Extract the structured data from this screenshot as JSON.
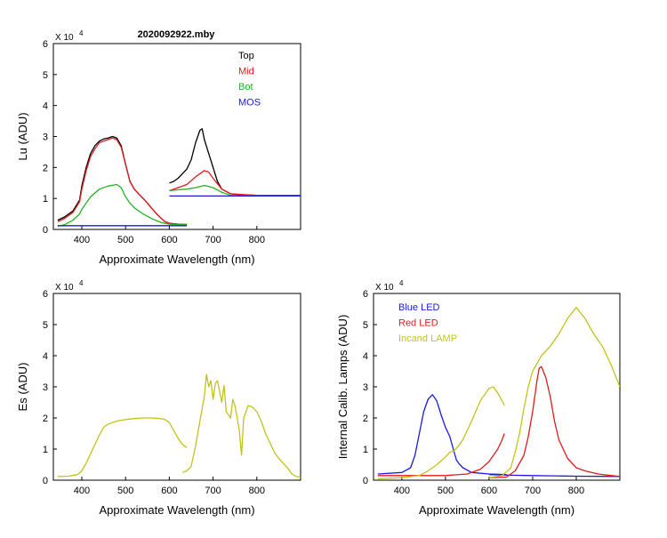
{
  "figure_title": "2020092922.mby",
  "chart_data": [
    {
      "id": "lu",
      "type": "line",
      "title": "2020092922.mby",
      "xlabel": "Approximate Wavelength (nm)",
      "ylabel": "Lu (ADU)",
      "xlim": [
        335,
        900
      ],
      "ylim": [
        0,
        6
      ],
      "xticks": [
        400,
        500,
        600,
        700,
        800
      ],
      "yticks": [
        0,
        1,
        2,
        3,
        4,
        5,
        6
      ],
      "ytick_labels": [
        "0",
        "1",
        "2",
        "3",
        "4",
        "5",
        "6"
      ],
      "multiplier_label": "X 10",
      "multiplier_exp": "4",
      "legend": [
        "Top",
        "Mid",
        "Bot",
        "MOS"
      ],
      "series": [
        {
          "name": "Top",
          "color": "#000000",
          "segments": [
            {
              "x": [
                345,
                360,
                380,
                395,
                400,
                410,
                420,
                430,
                440,
                450,
                460,
                470,
                480,
                490,
                500,
                510,
                520,
                530,
                540,
                550,
                560,
                570,
                580,
                590,
                600,
                610,
                620,
                630,
                640
              ],
              "y": [
                0.3,
                0.4,
                0.6,
                0.95,
                1.4,
                2.0,
                2.45,
                2.7,
                2.85,
                2.92,
                2.95,
                3.0,
                2.95,
                2.7,
                2.1,
                1.55,
                1.3,
                1.15,
                1.0,
                0.85,
                0.68,
                0.52,
                0.38,
                0.25,
                0.2,
                0.18,
                0.17,
                0.16,
                0.16
              ]
            },
            {
              "x": [
                600,
                610,
                620,
                630,
                640,
                650,
                660,
                670,
                675,
                680,
                690,
                700,
                710,
                720,
                740,
                760,
                800,
                850,
                900
              ],
              "y": [
                1.5,
                1.55,
                1.65,
                1.8,
                1.95,
                2.25,
                2.8,
                3.2,
                3.25,
                2.9,
                2.45,
                2.0,
                1.55,
                1.3,
                1.15,
                1.12,
                1.1,
                1.1,
                1.1
              ]
            }
          ]
        },
        {
          "name": "Mid",
          "color": "#e41a1c",
          "segments": [
            {
              "x": [
                345,
                360,
                380,
                395,
                400,
                410,
                420,
                430,
                440,
                450,
                460,
                470,
                480,
                490,
                500,
                510,
                520,
                530,
                540,
                550,
                560,
                570,
                580,
                590,
                600,
                610,
                620,
                630,
                640
              ],
              "y": [
                0.25,
                0.35,
                0.55,
                0.9,
                1.3,
                1.9,
                2.35,
                2.6,
                2.8,
                2.85,
                2.9,
                2.95,
                2.9,
                2.65,
                2.1,
                1.55,
                1.3,
                1.15,
                1.0,
                0.85,
                0.68,
                0.52,
                0.38,
                0.25,
                0.2,
                0.18,
                0.17,
                0.16,
                0.16
              ]
            },
            {
              "x": [
                600,
                620,
                640,
                660,
                680,
                690,
                700,
                720,
                740,
                800,
                900
              ],
              "y": [
                1.25,
                1.35,
                1.45,
                1.7,
                1.9,
                1.85,
                1.65,
                1.3,
                1.15,
                1.1,
                1.1
              ]
            }
          ]
        },
        {
          "name": "Bot",
          "color": "#22b322",
          "segments": [
            {
              "x": [
                345,
                360,
                380,
                395,
                400,
                420,
                440,
                460,
                480,
                490,
                500,
                510,
                520,
                540,
                560,
                580,
                600,
                620,
                640
              ],
              "y": [
                0.1,
                0.15,
                0.3,
                0.5,
                0.65,
                1.05,
                1.3,
                1.4,
                1.45,
                1.35,
                1.05,
                0.85,
                0.7,
                0.5,
                0.35,
                0.23,
                0.17,
                0.15,
                0.15
              ]
            },
            {
              "x": [
                600,
                620,
                640,
                660,
                680,
                700,
                720,
                740,
                800,
                900
              ],
              "y": [
                1.25,
                1.28,
                1.3,
                1.35,
                1.42,
                1.35,
                1.2,
                1.1,
                1.08,
                1.08
              ]
            }
          ]
        },
        {
          "name": "MOS",
          "color": "#1a1ae6",
          "segments": [
            {
              "x": [
                345,
                640
              ],
              "y": [
                0.12,
                0.12
              ]
            },
            {
              "x": [
                600,
                900
              ],
              "y": [
                1.08,
                1.08
              ]
            }
          ]
        }
      ]
    },
    {
      "id": "es",
      "type": "line",
      "title": "",
      "xlabel": "Approximate Wavelength (nm)",
      "ylabel": "Es  (ADU)",
      "xlim": [
        335,
        900
      ],
      "ylim": [
        0,
        6
      ],
      "xticks": [
        400,
        500,
        600,
        700,
        800
      ],
      "yticks": [
        0,
        1,
        2,
        3,
        4,
        5,
        6
      ],
      "ytick_labels": [
        "0",
        "1",
        "2",
        "3",
        "4",
        "5",
        "6"
      ],
      "multiplier_label": "X 10",
      "multiplier_exp": "4",
      "legend": [],
      "series": [
        {
          "name": "Es",
          "color": "#c4c418",
          "segments": [
            {
              "x": [
                345,
                370,
                390,
                400,
                410,
                420,
                430,
                440,
                450,
                460,
                480,
                500,
                520,
                540,
                560,
                580,
                590,
                600,
                610,
                620,
                630,
                640
              ],
              "y": [
                0.12,
                0.13,
                0.18,
                0.3,
                0.55,
                0.85,
                1.15,
                1.45,
                1.7,
                1.8,
                1.9,
                1.95,
                1.98,
                2.0,
                2.0,
                1.98,
                1.95,
                1.85,
                1.6,
                1.35,
                1.15,
                1.05
              ]
            },
            {
              "x": [
                630,
                640,
                650,
                660,
                670,
                680,
                685,
                690,
                695,
                700,
                705,
                710,
                720,
                725,
                730,
                740,
                745,
                750,
                755,
                760,
                765,
                770,
                780,
                790,
                800,
                810,
                820,
                830,
                840,
                850,
                860,
                870,
                880,
                890,
                900
              ],
              "y": [
                0.25,
                0.3,
                0.45,
                1.1,
                1.9,
                2.7,
                3.4,
                3.0,
                3.2,
                2.6,
                3.1,
                3.2,
                2.5,
                3.05,
                2.2,
                2.0,
                2.6,
                2.4,
                2.0,
                1.6,
                0.8,
                2.0,
                2.4,
                2.35,
                2.2,
                1.9,
                1.5,
                1.2,
                0.9,
                0.7,
                0.55,
                0.4,
                0.2,
                0.12,
                0.1
              ]
            }
          ]
        }
      ]
    },
    {
      "id": "lamps",
      "type": "line",
      "title": "",
      "xlabel": "Approximate Wavelength (nm)",
      "ylabel": "Internal Calib. Lamps (ADU)",
      "xlim": [
        335,
        900
      ],
      "ylim": [
        0,
        6
      ],
      "xticks": [
        400,
        500,
        600,
        700,
        800
      ],
      "yticks": [
        0,
        1,
        2,
        3,
        4,
        5,
        6
      ],
      "ytick_labels": [
        "0",
        "1",
        "2",
        "3",
        "4",
        "5",
        "6"
      ],
      "multiplier_label": "X 10",
      "multiplier_exp": "4",
      "legend": [
        "Blue LED",
        "Red LED",
        "Incand LAMP"
      ],
      "series": [
        {
          "name": "Blue LED",
          "color": "#1a1ae6",
          "segments": [
            {
              "x": [
                345,
                400,
                420,
                430,
                440,
                450,
                460,
                470,
                480,
                490,
                500,
                510,
                520,
                525,
                530,
                540,
                560,
                600,
                640
              ],
              "y": [
                0.2,
                0.25,
                0.4,
                0.8,
                1.5,
                2.2,
                2.6,
                2.75,
                2.55,
                2.1,
                1.7,
                1.4,
                0.9,
                0.65,
                0.55,
                0.4,
                0.25,
                0.2,
                0.18
              ]
            },
            {
              "x": [
                600,
                650,
                700,
                750,
                800,
                900
              ],
              "y": [
                0.18,
                0.16,
                0.15,
                0.14,
                0.13,
                0.12
              ]
            }
          ]
        },
        {
          "name": "Red LED",
          "color": "#e41a1c",
          "segments": [
            {
              "x": [
                345,
                500,
                550,
                580,
                600,
                620,
                630,
                635
              ],
              "y": [
                0.15,
                0.15,
                0.2,
                0.35,
                0.6,
                1.0,
                1.3,
                1.5
              ]
            },
            {
              "x": [
                600,
                640,
                660,
                680,
                690,
                700,
                710,
                715,
                720,
                730,
                740,
                750,
                760,
                780,
                800,
                820,
                850,
                880,
                900
              ],
              "y": [
                0.08,
                0.1,
                0.3,
                0.8,
                1.4,
                2.2,
                3.2,
                3.6,
                3.65,
                3.3,
                2.7,
                1.9,
                1.3,
                0.7,
                0.4,
                0.3,
                0.2,
                0.15,
                0.12
              ]
            }
          ]
        },
        {
          "name": "Incand LAMP",
          "color": "#c4c418",
          "segments": [
            {
              "x": [
                345,
                400,
                440,
                460,
                480,
                500,
                510,
                520,
                530,
                540,
                560,
                580,
                600,
                610,
                620,
                630,
                635
              ],
              "y": [
                0.05,
                0.08,
                0.15,
                0.3,
                0.5,
                0.75,
                0.9,
                0.95,
                1.1,
                1.3,
                1.9,
                2.55,
                2.95,
                3.0,
                2.8,
                2.55,
                2.4
              ]
            },
            {
              "x": [
                600,
                630,
                650,
                660,
                670,
                680,
                690,
                700,
                720,
                740,
                760,
                780,
                800,
                820,
                840,
                860,
                880,
                900
              ],
              "y": [
                0.08,
                0.15,
                0.4,
                0.9,
                1.5,
                2.3,
                3.0,
                3.5,
                4.0,
                4.3,
                4.7,
                5.2,
                5.55,
                5.2,
                4.7,
                4.3,
                3.7,
                3.0
              ]
            }
          ]
        }
      ]
    }
  ]
}
